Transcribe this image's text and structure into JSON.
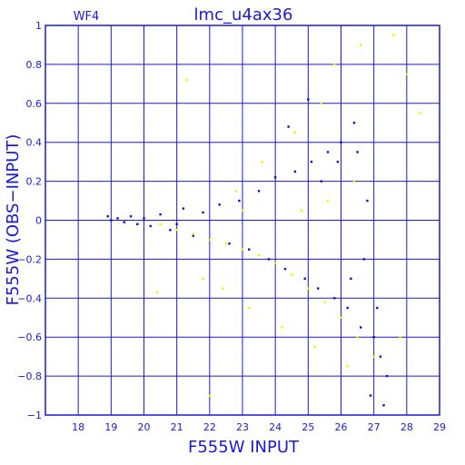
{
  "chart_data": {
    "type": "scatter",
    "panel_label": "WF4",
    "title": "lmc_u4ax36",
    "xlabel": "F555W INPUT",
    "ylabel": "F555W (OBS−INPUT)",
    "xlim": [
      17,
      29
    ],
    "ylim": [
      -1,
      1
    ],
    "xticks": [
      18,
      19,
      20,
      21,
      22,
      23,
      24,
      25,
      26,
      27,
      28,
      29
    ],
    "yticks": [
      -1,
      -0.8,
      -0.6,
      -0.4,
      -0.2,
      0,
      0.2,
      0.4,
      0.6,
      0.8,
      1
    ],
    "ytick_labels": [
      "−1",
      "−0.8",
      "−0.6",
      "−0.4",
      "−0.2",
      "0",
      "0.2",
      "0.4",
      "0.6",
      "0.8",
      "1"
    ],
    "grid": true,
    "colors": {
      "frame": "#1a1ad6",
      "blue_points": "#1010d0",
      "yellow_points": "#f2f200"
    },
    "series": [
      {
        "color": "blue",
        "points": [
          [
            18.9,
            0.02
          ],
          [
            19.0,
            0.0
          ],
          [
            19.2,
            0.01
          ],
          [
            19.4,
            -0.01
          ],
          [
            19.6,
            0.02
          ],
          [
            19.8,
            -0.02
          ],
          [
            20.0,
            0.01
          ],
          [
            20.2,
            -0.03
          ],
          [
            20.5,
            0.03
          ],
          [
            20.8,
            -0.05
          ],
          [
            21.0,
            -0.02
          ],
          [
            21.2,
            0.06
          ],
          [
            21.5,
            -0.08
          ],
          [
            21.8,
            0.04
          ],
          [
            22.0,
            -0.1
          ],
          [
            22.3,
            0.08
          ],
          [
            22.6,
            -0.12
          ],
          [
            22.9,
            0.1
          ],
          [
            23.2,
            -0.15
          ],
          [
            23.5,
            0.15
          ],
          [
            23.8,
            -0.2
          ],
          [
            24.0,
            0.22
          ],
          [
            24.3,
            -0.25
          ],
          [
            24.6,
            0.25
          ],
          [
            24.9,
            -0.3
          ],
          [
            25.1,
            0.3
          ],
          [
            25.3,
            -0.35
          ],
          [
            25.6,
            0.35
          ],
          [
            25.8,
            -0.4
          ],
          [
            26.0,
            0.4
          ],
          [
            26.2,
            -0.45
          ],
          [
            26.4,
            0.5
          ],
          [
            26.6,
            -0.55
          ],
          [
            26.8,
            0.1
          ],
          [
            27.0,
            -0.6
          ],
          [
            27.2,
            -0.7
          ],
          [
            27.4,
            -0.8
          ],
          [
            26.9,
            -0.9
          ],
          [
            27.3,
            -0.95
          ],
          [
            26.5,
            0.35
          ],
          [
            25.9,
            0.3
          ],
          [
            25.4,
            0.2
          ],
          [
            26.7,
            -0.2
          ],
          [
            26.3,
            -0.3
          ],
          [
            27.1,
            -0.45
          ],
          [
            25.0,
            0.62
          ],
          [
            24.4,
            0.48
          ]
        ]
      },
      {
        "color": "yellow",
        "points": [
          [
            20.5,
            -0.02
          ],
          [
            21.0,
            -0.05
          ],
          [
            21.5,
            -0.07
          ],
          [
            22.0,
            -0.1
          ],
          [
            22.5,
            -0.12
          ],
          [
            23.0,
            -0.15
          ],
          [
            23.5,
            -0.18
          ],
          [
            24.0,
            -0.22
          ],
          [
            24.5,
            -0.28
          ],
          [
            25.0,
            -0.35
          ],
          [
            25.5,
            -0.42
          ],
          [
            26.0,
            -0.5
          ],
          [
            26.5,
            -0.6
          ],
          [
            27.0,
            -0.7
          ],
          [
            21.8,
            -0.3
          ],
          [
            22.4,
            -0.35
          ],
          [
            23.2,
            -0.45
          ],
          [
            24.2,
            -0.55
          ],
          [
            25.2,
            -0.65
          ],
          [
            26.2,
            -0.75
          ],
          [
            22.8,
            0.15
          ],
          [
            23.6,
            0.3
          ],
          [
            24.6,
            0.45
          ],
          [
            25.4,
            0.6
          ],
          [
            25.8,
            0.8
          ],
          [
            26.6,
            0.9
          ],
          [
            27.6,
            0.95
          ],
          [
            21.3,
            0.72
          ],
          [
            20.4,
            -0.37
          ],
          [
            22.0,
            -0.9
          ],
          [
            23.0,
            0.05
          ],
          [
            24.8,
            0.05
          ],
          [
            25.6,
            0.1
          ],
          [
            26.4,
            0.2
          ],
          [
            27.8,
            -0.6
          ],
          [
            28.0,
            0.75
          ],
          [
            28.4,
            0.55
          ]
        ]
      }
    ]
  }
}
